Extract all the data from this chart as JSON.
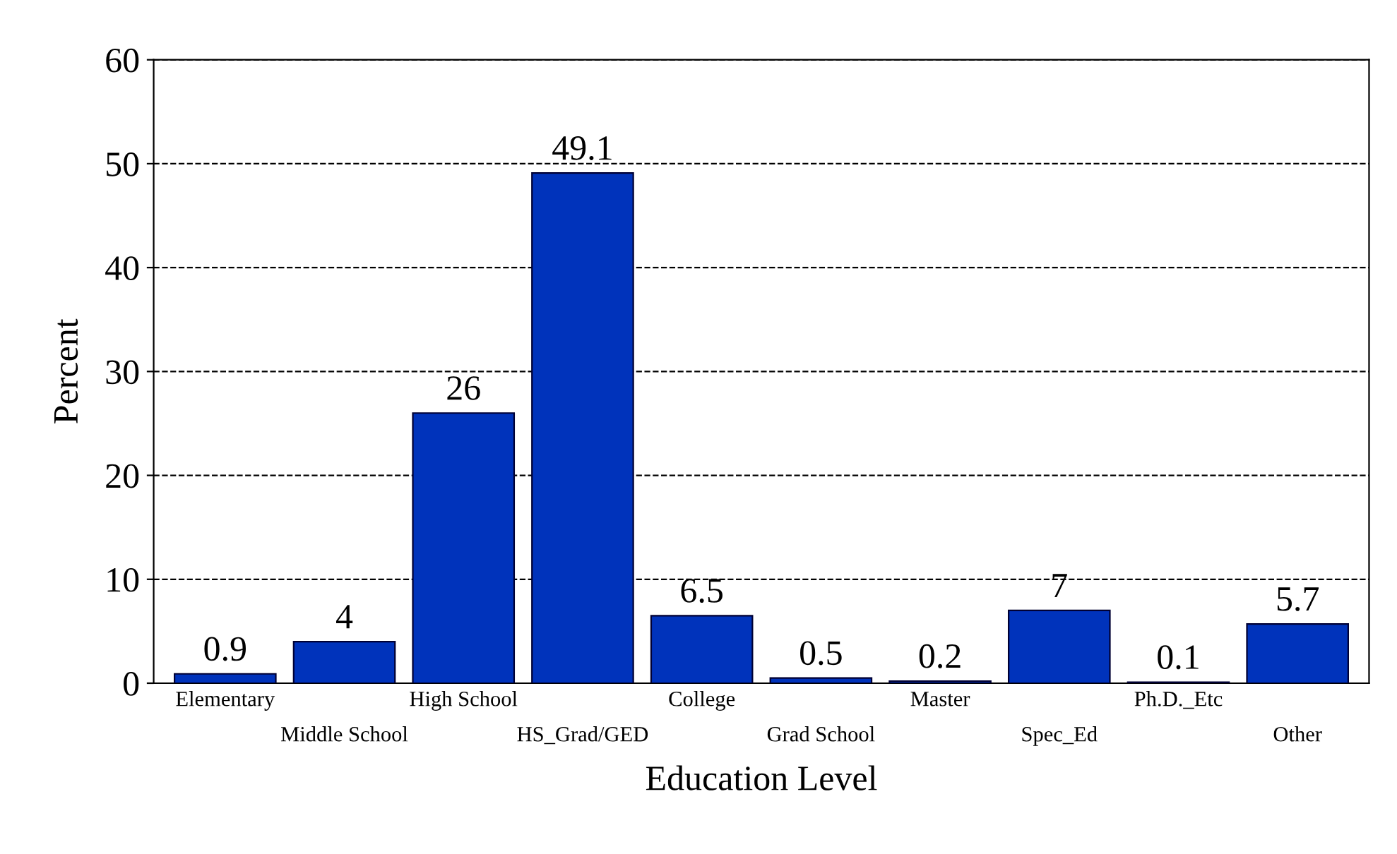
{
  "chart_data": {
    "type": "bar",
    "xlabel": "Education Level",
    "ylabel": "Percent",
    "categories": [
      "Elementary",
      "Middle School",
      "High School",
      "HS_Grad/GED",
      "College",
      "Grad School",
      "Master",
      "Spec_Ed",
      "Ph.D._Etc",
      "Other"
    ],
    "values": [
      0.9,
      4,
      26,
      49.1,
      6.5,
      0.5,
      0.2,
      7,
      0.1,
      5.7
    ],
    "color": "#0033bb",
    "ylim": [
      0,
      60
    ],
    "yticks": [
      0,
      10,
      20,
      30,
      40,
      50,
      60
    ],
    "grid": "y",
    "data_labels": true
  }
}
